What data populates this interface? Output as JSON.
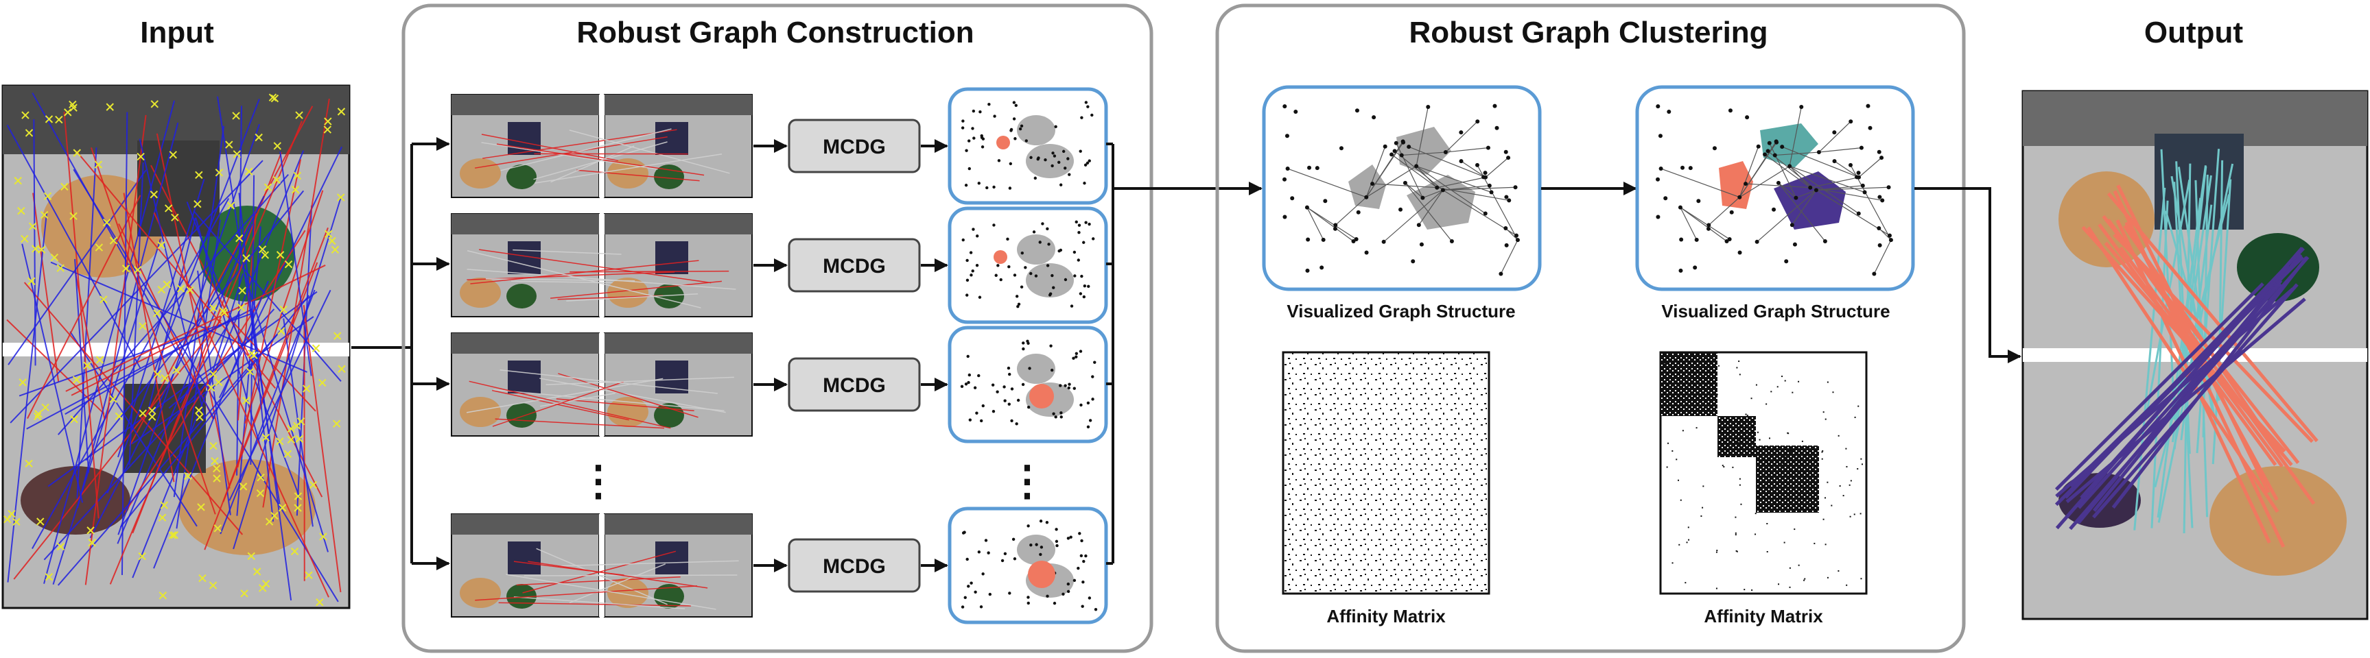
{
  "sections": {
    "input": "Input",
    "construction": "Robust Graph Construction",
    "clustering": "Robust Graph Clustering",
    "output": "Output"
  },
  "module_label": "MCDG",
  "ellipsis": "⋮",
  "captions": {
    "graph_before": "Visualized Graph Structure",
    "graph_after": "Visualized Graph Structure",
    "matrix_before": "Affinity Matrix",
    "matrix_after": "Affinity Matrix"
  },
  "colors": {
    "panel_border": "#9a9a9a",
    "graph_box_border": "#5b9bd5",
    "module_fill": "#d9d9d9",
    "inlier_match": "#2020e0",
    "outlier_match": "#e02020",
    "keypoint": "#e8e830",
    "cluster_salmon": "#f07860",
    "cluster_teal": "#5aaaa6",
    "cluster_purple": "#4a3590",
    "node_gray": "#8a8a8a",
    "match_cyan": "#70c6c8"
  }
}
